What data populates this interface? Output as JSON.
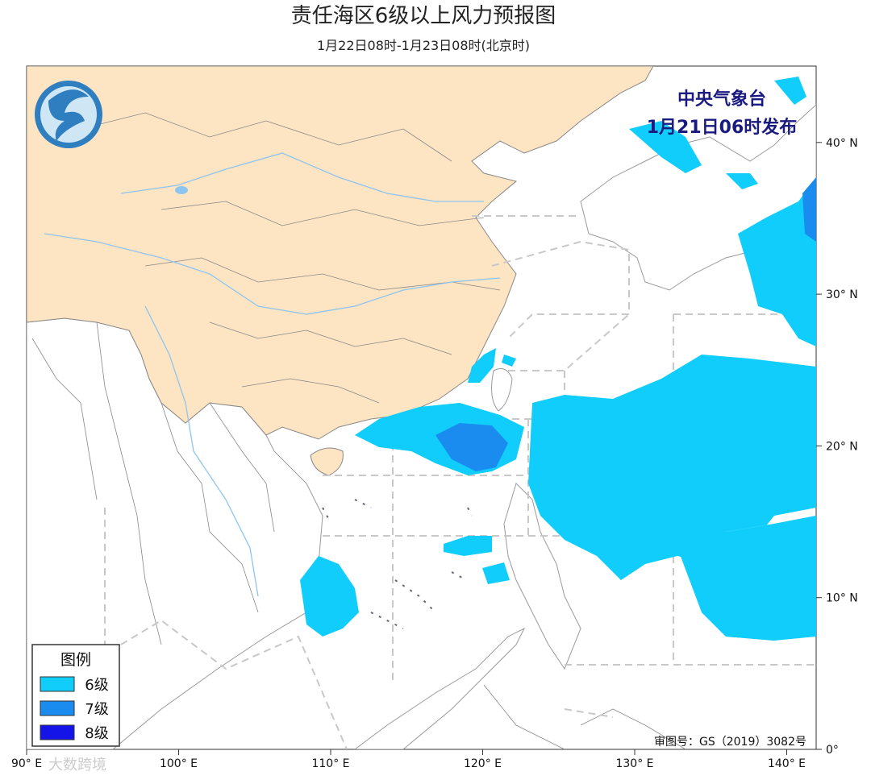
{
  "header": {
    "title": "责任海区6级以上风力预报图",
    "subtitle": "1月22日08时-1月23日08时(北京时)",
    "agency": "中央气象台",
    "issued": "1月21日06时发布"
  },
  "map": {
    "lon_ticks": [
      {
        "value": 90,
        "label": "90° E"
      },
      {
        "value": 100,
        "label": "100° E"
      },
      {
        "value": 110,
        "label": "110° E"
      },
      {
        "value": 120,
        "label": "120° E"
      },
      {
        "value": 130,
        "label": "130° E"
      },
      {
        "value": 140,
        "label": "140° E"
      }
    ],
    "lat_ticks": [
      {
        "value": 0,
        "label": "0°"
      },
      {
        "value": 10,
        "label": "10° N"
      },
      {
        "value": 20,
        "label": "20° N"
      },
      {
        "value": 30,
        "label": "30° N"
      },
      {
        "value": 40,
        "label": "40° N"
      }
    ]
  },
  "legend": {
    "title": "图例",
    "items": [
      "6级",
      "7级",
      "8级"
    ]
  },
  "footer": {
    "review_number": "审图号：GS（2019）3082号",
    "watermark": "大数跨境"
  }
}
